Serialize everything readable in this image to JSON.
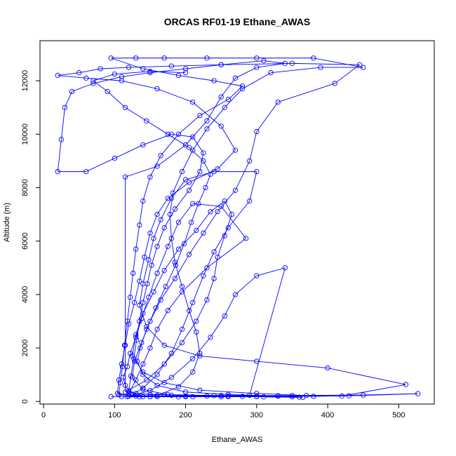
{
  "chart_data": {
    "type": "scatter",
    "title": "ORCAS RF01-19 Ethane_AWAS",
    "xlabel": "Ethane_AWAS",
    "ylabel": "Altitude (m)",
    "xlim": [
      -5,
      550
    ],
    "ylim": [
      -100,
      13500
    ],
    "xticks": [
      0,
      100,
      200,
      300,
      400,
      500
    ],
    "yticks": [
      0,
      2000,
      4000,
      6000,
      8000,
      10000,
      12000
    ],
    "grid": false,
    "legend": "none",
    "marker": "open-circle",
    "connected": true,
    "color": "#0000ff",
    "series": [
      {
        "values": [
          [
            95,
            180
          ],
          [
            110,
            180
          ],
          [
            135,
            170
          ],
          [
            160,
            180
          ],
          [
            200,
            190
          ],
          [
            250,
            170
          ],
          [
            300,
            180
          ],
          [
            360,
            160
          ],
          [
            300,
            190
          ],
          [
            230,
            200
          ],
          [
            180,
            230
          ],
          [
            150,
            260
          ],
          [
            130,
            300
          ],
          [
            120,
            400
          ],
          [
            115,
            600
          ],
          [
            112,
            900
          ],
          [
            118,
            1300
          ],
          [
            122,
            1800
          ],
          [
            130,
            2400
          ],
          [
            138,
            3100
          ],
          [
            148,
            3900
          ],
          [
            160,
            4800
          ],
          [
            175,
            5800
          ],
          [
            190,
            6700
          ],
          [
            210,
            7400
          ],
          [
            250,
            7300
          ],
          [
            285,
            6100
          ],
          [
            230,
            5000
          ],
          [
            195,
            4100
          ],
          [
            175,
            3400
          ],
          [
            160,
            2700
          ],
          [
            150,
            2000
          ],
          [
            140,
            1400
          ],
          [
            130,
            800
          ],
          [
            120,
            300
          ],
          [
            170,
            250
          ],
          [
            240,
            220
          ],
          [
            330,
            210
          ],
          [
            420,
            200
          ],
          [
            510,
            630
          ],
          [
            400,
            1250
          ],
          [
            300,
            1500
          ],
          [
            220,
            1700
          ],
          [
            170,
            2100
          ],
          [
            145,
            2800
          ],
          [
            135,
            3600
          ],
          [
            140,
            4400
          ],
          [
            148,
            5300
          ],
          [
            155,
            6100
          ],
          [
            165,
            6800
          ],
          [
            180,
            7600
          ],
          [
            200,
            8300
          ],
          [
            240,
            8600
          ],
          [
            300,
            8600
          ],
          [
            290,
            7500
          ],
          [
            260,
            6500
          ],
          [
            240,
            5600
          ],
          [
            225,
            4700
          ],
          [
            210,
            3700
          ],
          [
            195,
            2700
          ],
          [
            180,
            1800
          ],
          [
            160,
            1000
          ],
          [
            140,
            500
          ],
          [
            125,
            250
          ],
          [
            150,
            180
          ],
          [
            210,
            175
          ],
          [
            280,
            190
          ],
          [
            330,
            200
          ],
          [
            380,
            190
          ],
          [
            430,
            210
          ],
          [
            527,
            290
          ],
          [
            450,
            240
          ],
          [
            350,
            220
          ],
          [
            250,
            220
          ],
          [
            175,
            250
          ],
          [
            140,
            450
          ],
          [
            125,
            900
          ],
          [
            128,
            1500
          ],
          [
            138,
            2200
          ],
          [
            150,
            3000
          ],
          [
            165,
            3800
          ],
          [
            185,
            4600
          ],
          [
            205,
            5500
          ],
          [
            225,
            6300
          ],
          [
            245,
            7100
          ],
          [
            270,
            7900
          ],
          [
            290,
            9000
          ],
          [
            300,
            10100
          ],
          [
            330,
            11200
          ],
          [
            410,
            11900
          ],
          [
            445,
            12600
          ],
          [
            350,
            12650
          ],
          [
            250,
            12600
          ],
          [
            180,
            12550
          ],
          [
            120,
            12500
          ],
          [
            80,
            12450
          ],
          [
            50,
            12300
          ],
          [
            20,
            12200
          ],
          [
            60,
            12100
          ],
          [
            110,
            12000
          ],
          [
            160,
            11700
          ],
          [
            210,
            11200
          ],
          [
            250,
            10300
          ],
          [
            270,
            9400
          ],
          [
            245,
            8700
          ],
          [
            205,
            8200
          ],
          [
            175,
            7600
          ],
          [
            160,
            7000
          ],
          [
            150,
            6300
          ],
          [
            142,
            5400
          ],
          [
            135,
            4500
          ],
          [
            128,
            3700
          ],
          [
            120,
            2900
          ],
          [
            115,
            2100
          ],
          [
            110,
            1400
          ],
          [
            106,
            800
          ],
          [
            104,
            300
          ],
          [
            130,
            200
          ],
          [
            200,
            200
          ],
          [
            290,
            230
          ],
          [
            340,
            5000
          ],
          [
            300,
            4700
          ],
          [
            270,
            4000
          ],
          [
            255,
            3200
          ],
          [
            235,
            2400
          ],
          [
            210,
            1600
          ],
          [
            180,
            900
          ],
          [
            150,
            400
          ],
          [
            120,
            200
          ],
          [
            160,
            220
          ],
          [
            190,
            550
          ],
          [
            210,
            1100
          ],
          [
            220,
            1800
          ],
          [
            215,
            2600
          ],
          [
            205,
            3400
          ],
          [
            195,
            4300
          ],
          [
            185,
            5200
          ],
          [
            180,
            6100
          ],
          [
            178,
            7000
          ],
          [
            182,
            7800
          ],
          [
            195,
            8600
          ],
          [
            210,
            9400
          ],
          [
            230,
            10200
          ],
          [
            255,
            11000
          ],
          [
            280,
            11700
          ],
          [
            320,
            12300
          ],
          [
            390,
            12500
          ],
          [
            450,
            12500
          ],
          [
            380,
            12850
          ],
          [
            300,
            12850
          ],
          [
            230,
            12850
          ],
          [
            170,
            12850
          ],
          [
            130,
            12850
          ],
          [
            95,
            12850
          ],
          [
            140,
            12450
          ],
          [
            190,
            12200
          ],
          [
            240,
            12000
          ],
          [
            280,
            11800
          ],
          [
            260,
            11300
          ],
          [
            220,
            10700
          ],
          [
            190,
            10000
          ],
          [
            165,
            9200
          ],
          [
            150,
            8400
          ],
          [
            140,
            7500
          ],
          [
            135,
            6600
          ],
          [
            130,
            5700
          ],
          [
            126,
            4800
          ],
          [
            122,
            3900
          ],
          [
            118,
            3000
          ],
          [
            114,
            2100
          ],
          [
            111,
            1300
          ],
          [
            108,
            700
          ],
          [
            106,
            250
          ],
          [
            140,
            180
          ],
          [
            190,
            170
          ],
          [
            260,
            180
          ],
          [
            350,
            170
          ],
          [
            370,
            220
          ],
          [
            300,
            300
          ],
          [
            220,
            420
          ],
          [
            170,
            700
          ],
          [
            140,
            1100
          ],
          [
            125,
            1700
          ],
          [
            130,
            2500
          ],
          [
            140,
            3300
          ],
          [
            155,
            4100
          ],
          [
            170,
            4900
          ],
          [
            190,
            5700
          ],
          [
            215,
            6400
          ],
          [
            235,
            7100
          ],
          [
            255,
            7500
          ],
          [
            265,
            7000
          ],
          [
            255,
            6200
          ],
          [
            245,
            5400
          ],
          [
            240,
            4600
          ],
          [
            230,
            3800
          ],
          [
            215,
            3000
          ],
          [
            195,
            2200
          ],
          [
            170,
            1400
          ],
          [
            145,
            800
          ],
          [
            115,
            350
          ],
          [
            115,
            8400
          ],
          [
            160,
            8800
          ],
          [
            200,
            9600
          ],
          [
            230,
            10500
          ],
          [
            250,
            11400
          ],
          [
            270,
            12100
          ],
          [
            300,
            12500
          ],
          [
            340,
            12650
          ],
          [
            310,
            12750
          ],
          [
            250,
            12600
          ],
          [
            200,
            12450
          ],
          [
            150,
            12300
          ],
          [
            110,
            12150
          ],
          [
            70,
            11900
          ],
          [
            40,
            11600
          ],
          [
            30,
            11000
          ],
          [
            25,
            9800
          ],
          [
            20,
            8600
          ],
          [
            60,
            8600
          ],
          [
            100,
            9100
          ],
          [
            140,
            9600
          ],
          [
            180,
            10000
          ],
          [
            210,
            9900
          ],
          [
            225,
            9300
          ],
          [
            220,
            8600
          ],
          [
            205,
            7900
          ],
          [
            185,
            7200
          ],
          [
            170,
            6500
          ],
          [
            160,
            5800
          ],
          [
            152,
            5100
          ],
          [
            146,
            4400
          ],
          [
            140,
            3700
          ],
          [
            135,
            3000
          ],
          [
            131,
            2300
          ],
          [
            127,
            1600
          ],
          [
            123,
            950
          ],
          [
            120,
            400
          ],
          [
            118,
            180
          ],
          [
            150,
            180
          ],
          [
            200,
            180
          ],
          [
            260,
            200
          ],
          [
            310,
            170
          ],
          [
            365,
            150
          ],
          [
            330,
            200
          ],
          [
            260,
            260
          ],
          [
            200,
            350
          ],
          [
            160,
            600
          ],
          [
            140,
            1000
          ],
          [
            132,
            1500
          ],
          [
            136,
            2000
          ],
          [
            145,
            2700
          ],
          [
            158,
            3500
          ],
          [
            172,
            4300
          ],
          [
            186,
            5100
          ],
          [
            198,
            5900
          ],
          [
            208,
            6700
          ],
          [
            218,
            7400
          ],
          [
            228,
            8000
          ],
          [
            235,
            8500
          ],
          [
            225,
            9000
          ],
          [
            205,
            9500
          ],
          [
            175,
            10000
          ],
          [
            145,
            10500
          ],
          [
            115,
            11000
          ],
          [
            90,
            11600
          ],
          [
            70,
            12000
          ],
          [
            100,
            12250
          ],
          [
            150,
            12350
          ],
          [
            200,
            12300
          ]
        ]
      }
    ]
  }
}
